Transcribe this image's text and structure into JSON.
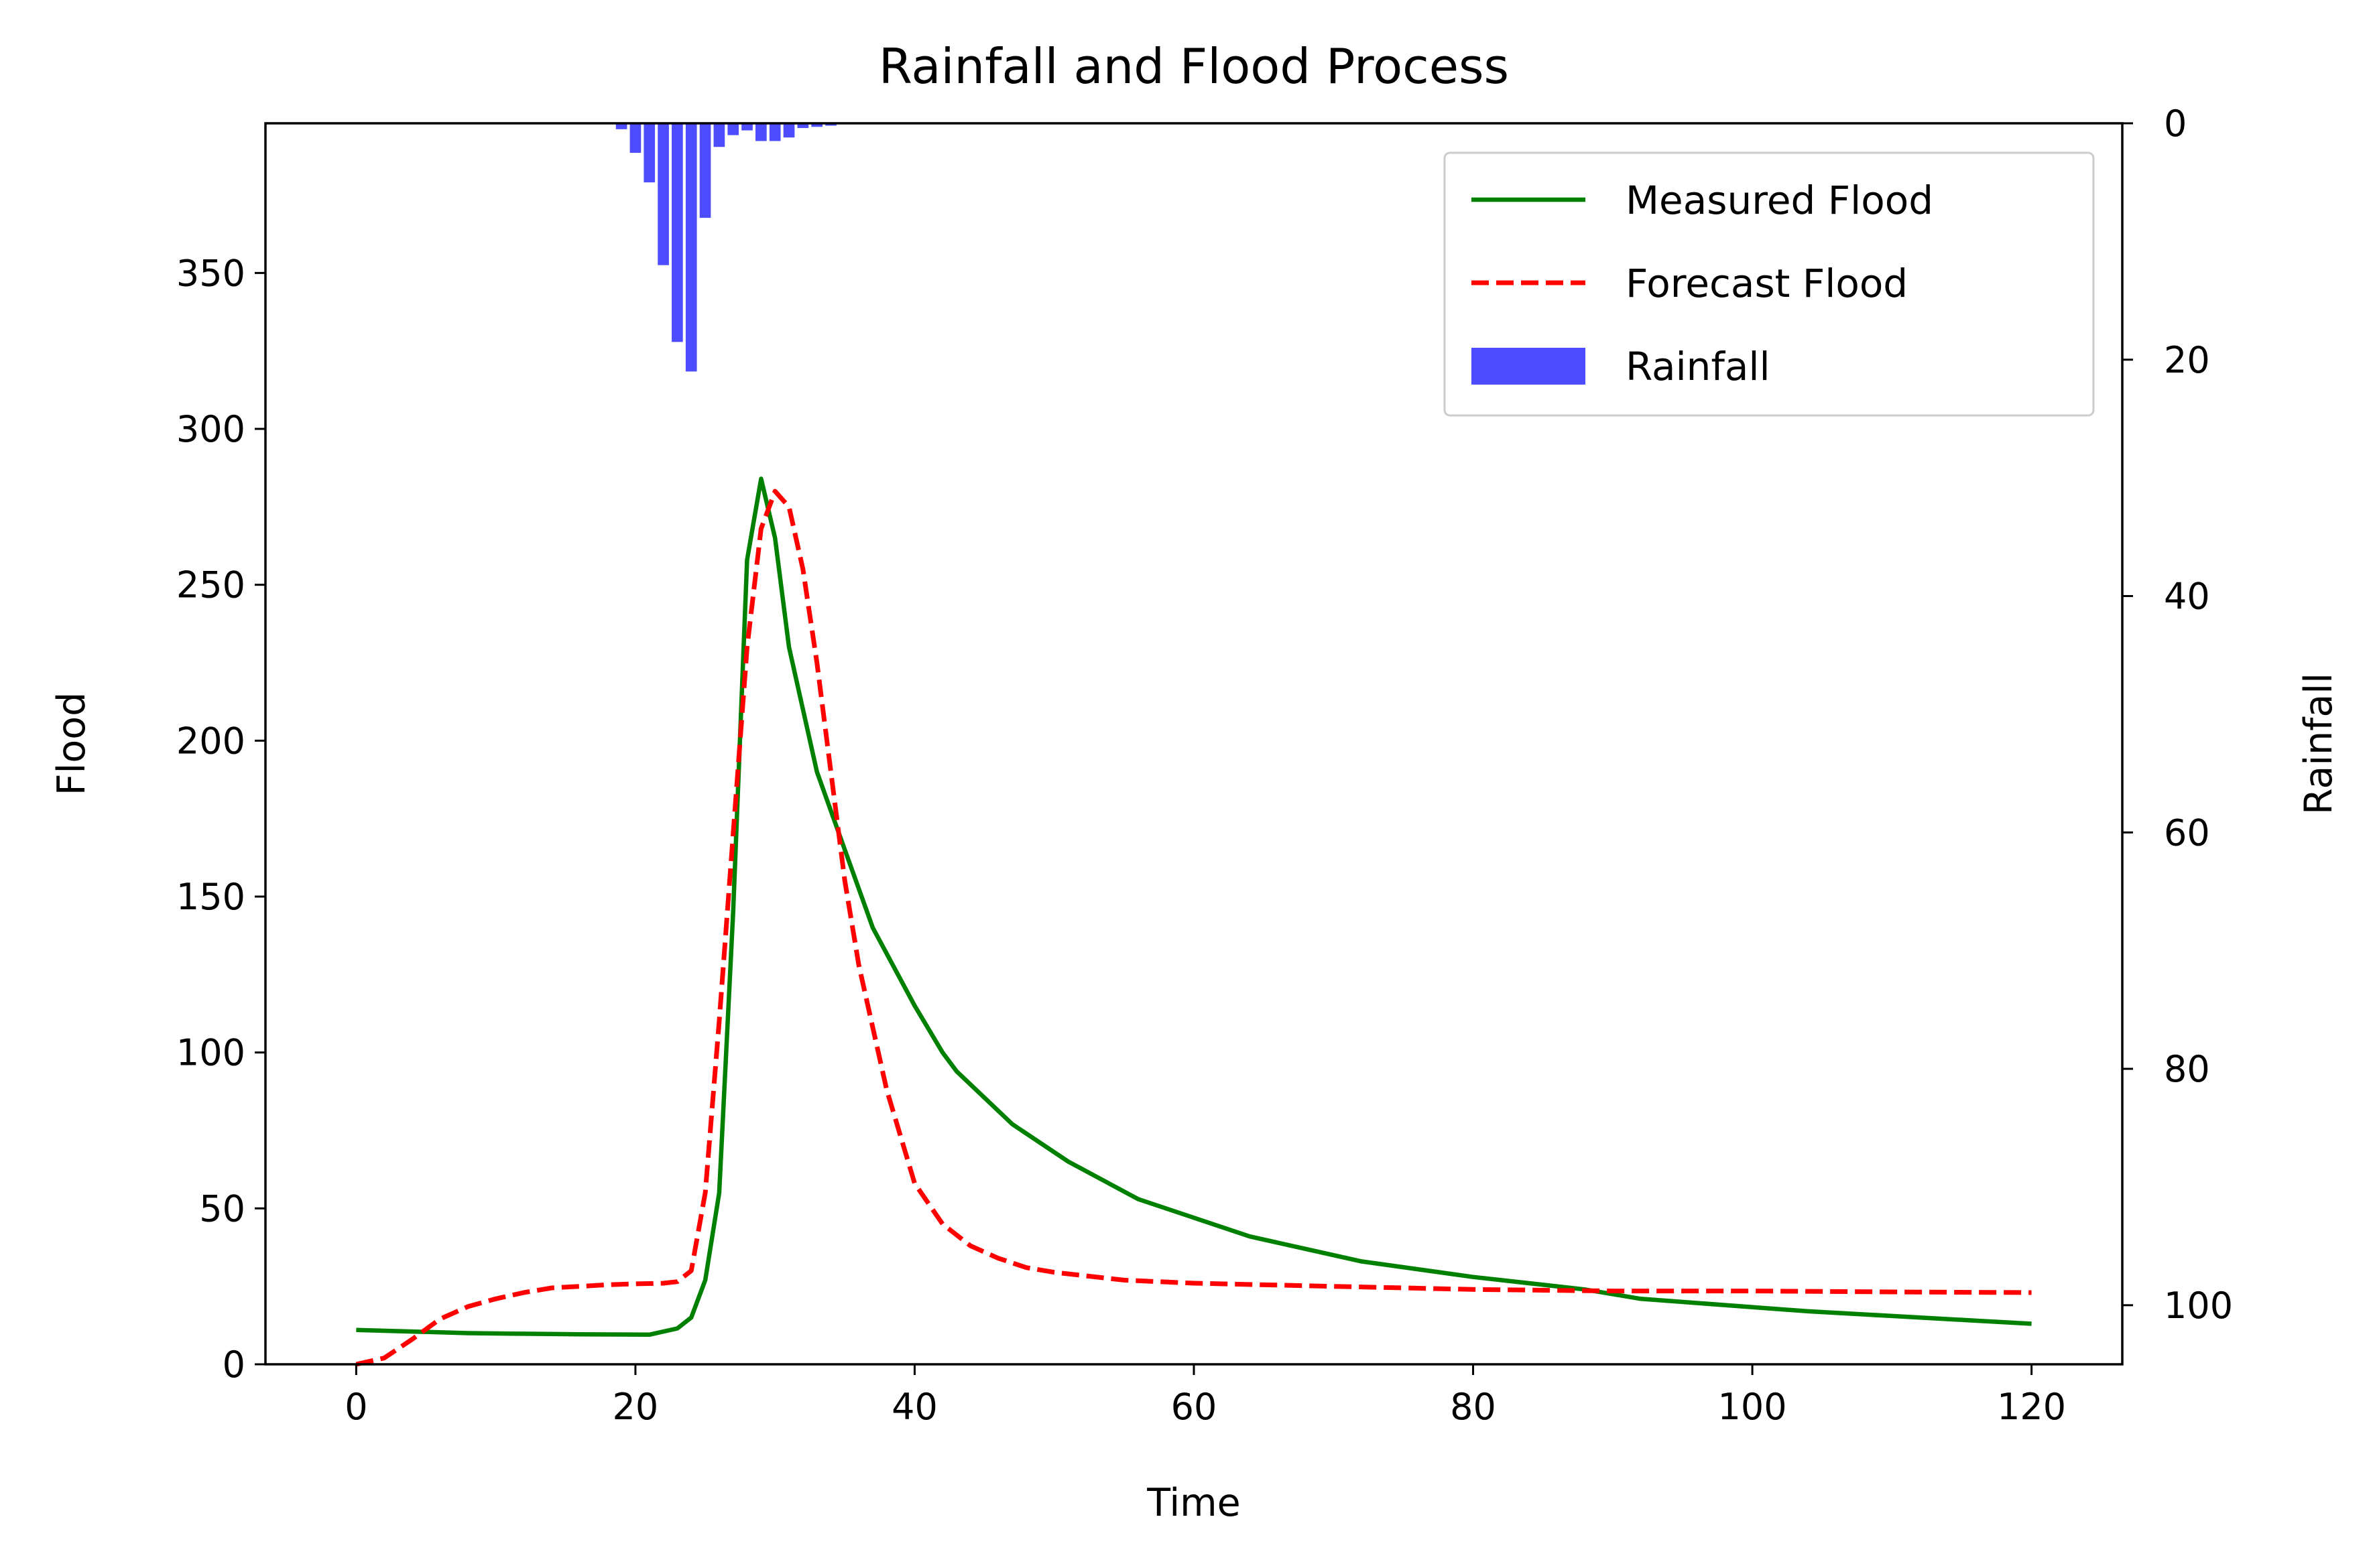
{
  "chart_data": {
    "type": "line",
    "title": "Rainfall and Flood Process",
    "xlabel": "Time",
    "ylabel": "Flood",
    "y2label": "Rainfall",
    "xlim": [
      -6.5,
      126.5
    ],
    "ylim": [
      0,
      398
    ],
    "y2lim": [
      105,
      0
    ],
    "y2_inverted": true,
    "xticks": [
      0,
      20,
      40,
      60,
      80,
      100,
      120
    ],
    "yticks": [
      0,
      50,
      100,
      150,
      200,
      250,
      300,
      350
    ],
    "y2ticks": [
      0,
      20,
      40,
      60,
      80,
      100
    ],
    "legend_position": "top-right",
    "grid": false,
    "series": [
      {
        "name": "Measured Flood",
        "kind": "line",
        "axis": "left",
        "color": "#008000",
        "style": "solid",
        "x": [
          0,
          4,
          8,
          12,
          16,
          21,
          23,
          24,
          25,
          26,
          27,
          28,
          29,
          30,
          31,
          33,
          35,
          37,
          40,
          42,
          43,
          47,
          51,
          56,
          60,
          64,
          68,
          72,
          80,
          88,
          92,
          104,
          110,
          116,
          120
        ],
        "y": [
          11,
          10.5,
          10,
          9.8,
          9.6,
          9.5,
          11.5,
          15,
          27,
          55,
          145,
          258,
          284,
          265,
          230,
          190,
          165,
          140,
          115,
          100,
          94,
          77,
          65,
          53,
          47,
          41,
          37,
          33,
          28,
          24,
          21,
          17,
          15.5,
          14,
          13
        ]
      },
      {
        "name": "Forecast Flood",
        "kind": "line",
        "axis": "left",
        "color": "#ff0000",
        "style": "dashed",
        "x": [
          0,
          2,
          4,
          6,
          8,
          10,
          12,
          14,
          16,
          18,
          20,
          22,
          23,
          24,
          25,
          26,
          27,
          28,
          29,
          30,
          31,
          32,
          33,
          34,
          35,
          36,
          38,
          40,
          42,
          44,
          46,
          48,
          50,
          55,
          60,
          70,
          80,
          90,
          100,
          110,
          120
        ],
        "y": [
          0,
          2,
          8,
          14.5,
          18.5,
          21,
          23,
          24.5,
          25,
          25.5,
          25.8,
          26,
          26.5,
          30,
          55,
          110,
          170,
          230,
          268,
          280,
          275,
          255,
          225,
          190,
          155,
          128,
          88,
          58,
          45,
          38,
          34,
          31,
          29.5,
          27,
          26,
          25,
          24,
          23.5,
          23.5,
          23.2,
          23
        ]
      },
      {
        "name": "Rainfall",
        "kind": "bar",
        "axis": "right",
        "color": "#4d4dff",
        "x": [
          19,
          20,
          21,
          22,
          23,
          24,
          25,
          26,
          27,
          28,
          29,
          30,
          31,
          32,
          33,
          34
        ],
        "values": [
          0.5,
          2.5,
          5,
          12,
          18.5,
          21,
          8,
          2,
          1,
          0.6,
          1.5,
          1.5,
          1.2,
          0.4,
          0.3,
          0.2
        ]
      }
    ]
  }
}
